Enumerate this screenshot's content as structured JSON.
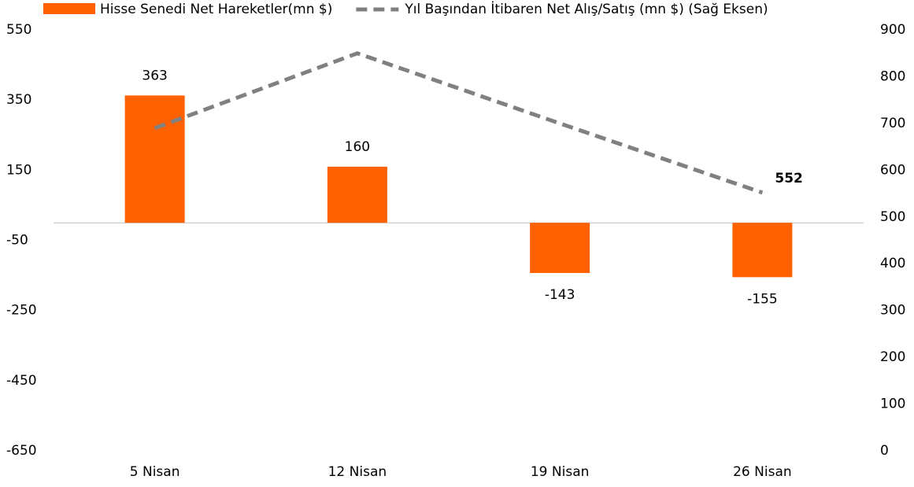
{
  "chart_data": {
    "type": "bar_line",
    "categories": [
      "5 Nisan",
      "12 Nisan",
      "19 Nisan",
      "26 Nisan"
    ],
    "series": [
      {
        "name": "Hisse Senedi Net Hareketler(mn $)",
        "type": "bar",
        "color": "#ff6000",
        "values": [
          363,
          160,
          -143,
          -155
        ]
      },
      {
        "name": "Yıl Başından İtibaren Net Alış/Satış (mn $) (Sağ Eksen)",
        "type": "line",
        "axis": "y2",
        "color": "#808080",
        "dashed": true,
        "values": [
          690,
          850,
          700,
          552
        ],
        "value_labels": [
          null,
          null,
          null,
          "552"
        ]
      }
    ],
    "ylim": [
      -650,
      550
    ],
    "yticks": [
      -650,
      -450,
      -250,
      -50,
      150,
      350,
      550
    ],
    "y2lim": [
      0,
      900
    ],
    "y2ticks": [
      0,
      100,
      200,
      300,
      400,
      500,
      600,
      700,
      800,
      900
    ],
    "grid": false,
    "legend": "top"
  }
}
